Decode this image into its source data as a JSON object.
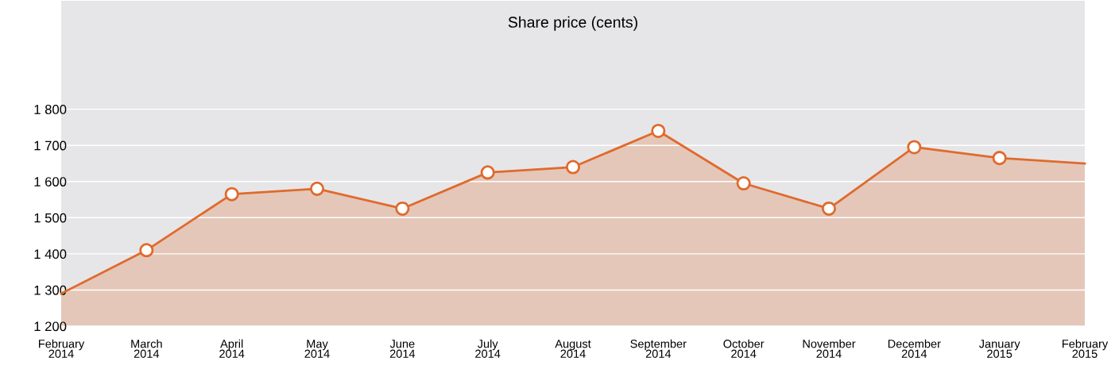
{
  "chart_data": {
    "type": "area",
    "title": "Share price (cents)",
    "categories": [
      "February\n2014",
      "March\n2014",
      "April\n2014",
      "May\n2014",
      "June\n2014",
      "July\n2014",
      "August\n2014",
      "September\n2014",
      "October\n2014",
      "November\n2014",
      "December\n2014",
      "January\n2015",
      "February\n2015"
    ],
    "series": [
      {
        "color": "#e06a2c",
        "values": [
          1290,
          1410,
          1565,
          1580,
          1525,
          1625,
          1640,
          1740,
          1595,
          1525,
          1695,
          1665,
          1650
        ]
      }
    ],
    "ylim": [
      1200,
      2100
    ],
    "yticks": [
      {
        "value": 1200,
        "label": "1 200"
      },
      {
        "value": 1300,
        "label": "1 300"
      },
      {
        "value": 1400,
        "label": "1 400"
      },
      {
        "value": 1500,
        "label": "1 500"
      },
      {
        "value": 1600,
        "label": "1 600"
      },
      {
        "value": 1700,
        "label": "1 700"
      },
      {
        "value": 1800,
        "label": "1 800"
      }
    ],
    "grid": "y",
    "marker": "circle",
    "line_style": "solid"
  }
}
